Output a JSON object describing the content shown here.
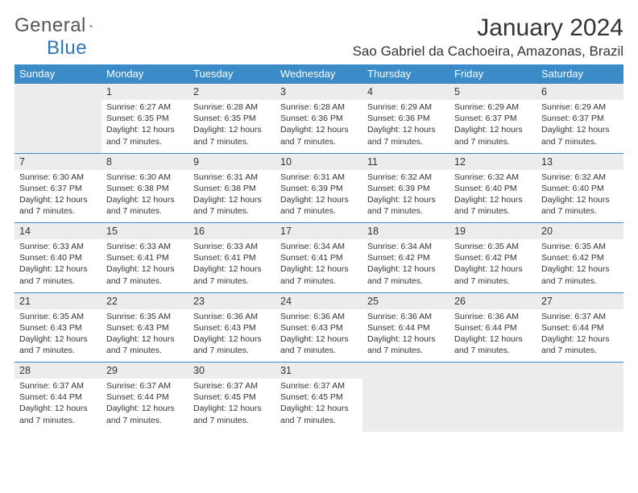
{
  "logo": {
    "word1": "General",
    "word2": "Blue"
  },
  "title": "January 2024",
  "subtitle": "Sao Gabriel da Cachoeira, Amazonas, Brazil",
  "weekdays": [
    "Sunday",
    "Monday",
    "Tuesday",
    "Wednesday",
    "Thursday",
    "Friday",
    "Saturday"
  ],
  "colors": {
    "header_bg": "#3b8bc9",
    "header_text": "#ffffff",
    "daynum_bg": "#ececec",
    "row_divider": "#3b8bc9",
    "text": "#333333",
    "logo_grey": "#555555",
    "logo_blue": "#2d77b8"
  },
  "weeks": [
    {
      "nums": [
        "",
        "1",
        "2",
        "3",
        "4",
        "5",
        "6"
      ],
      "cells": [
        null,
        {
          "sunrise": "Sunrise: 6:27 AM",
          "sunset": "Sunset: 6:35 PM",
          "day1": "Daylight: 12 hours",
          "day2": "and 7 minutes."
        },
        {
          "sunrise": "Sunrise: 6:28 AM",
          "sunset": "Sunset: 6:35 PM",
          "day1": "Daylight: 12 hours",
          "day2": "and 7 minutes."
        },
        {
          "sunrise": "Sunrise: 6:28 AM",
          "sunset": "Sunset: 6:36 PM",
          "day1": "Daylight: 12 hours",
          "day2": "and 7 minutes."
        },
        {
          "sunrise": "Sunrise: 6:29 AM",
          "sunset": "Sunset: 6:36 PM",
          "day1": "Daylight: 12 hours",
          "day2": "and 7 minutes."
        },
        {
          "sunrise": "Sunrise: 6:29 AM",
          "sunset": "Sunset: 6:37 PM",
          "day1": "Daylight: 12 hours",
          "day2": "and 7 minutes."
        },
        {
          "sunrise": "Sunrise: 6:29 AM",
          "sunset": "Sunset: 6:37 PM",
          "day1": "Daylight: 12 hours",
          "day2": "and 7 minutes."
        }
      ]
    },
    {
      "nums": [
        "7",
        "8",
        "9",
        "10",
        "11",
        "12",
        "13"
      ],
      "cells": [
        {
          "sunrise": "Sunrise: 6:30 AM",
          "sunset": "Sunset: 6:37 PM",
          "day1": "Daylight: 12 hours",
          "day2": "and 7 minutes."
        },
        {
          "sunrise": "Sunrise: 6:30 AM",
          "sunset": "Sunset: 6:38 PM",
          "day1": "Daylight: 12 hours",
          "day2": "and 7 minutes."
        },
        {
          "sunrise": "Sunrise: 6:31 AM",
          "sunset": "Sunset: 6:38 PM",
          "day1": "Daylight: 12 hours",
          "day2": "and 7 minutes."
        },
        {
          "sunrise": "Sunrise: 6:31 AM",
          "sunset": "Sunset: 6:39 PM",
          "day1": "Daylight: 12 hours",
          "day2": "and 7 minutes."
        },
        {
          "sunrise": "Sunrise: 6:32 AM",
          "sunset": "Sunset: 6:39 PM",
          "day1": "Daylight: 12 hours",
          "day2": "and 7 minutes."
        },
        {
          "sunrise": "Sunrise: 6:32 AM",
          "sunset": "Sunset: 6:40 PM",
          "day1": "Daylight: 12 hours",
          "day2": "and 7 minutes."
        },
        {
          "sunrise": "Sunrise: 6:32 AM",
          "sunset": "Sunset: 6:40 PM",
          "day1": "Daylight: 12 hours",
          "day2": "and 7 minutes."
        }
      ]
    },
    {
      "nums": [
        "14",
        "15",
        "16",
        "17",
        "18",
        "19",
        "20"
      ],
      "cells": [
        {
          "sunrise": "Sunrise: 6:33 AM",
          "sunset": "Sunset: 6:40 PM",
          "day1": "Daylight: 12 hours",
          "day2": "and 7 minutes."
        },
        {
          "sunrise": "Sunrise: 6:33 AM",
          "sunset": "Sunset: 6:41 PM",
          "day1": "Daylight: 12 hours",
          "day2": "and 7 minutes."
        },
        {
          "sunrise": "Sunrise: 6:33 AM",
          "sunset": "Sunset: 6:41 PM",
          "day1": "Daylight: 12 hours",
          "day2": "and 7 minutes."
        },
        {
          "sunrise": "Sunrise: 6:34 AM",
          "sunset": "Sunset: 6:41 PM",
          "day1": "Daylight: 12 hours",
          "day2": "and 7 minutes."
        },
        {
          "sunrise": "Sunrise: 6:34 AM",
          "sunset": "Sunset: 6:42 PM",
          "day1": "Daylight: 12 hours",
          "day2": "and 7 minutes."
        },
        {
          "sunrise": "Sunrise: 6:35 AM",
          "sunset": "Sunset: 6:42 PM",
          "day1": "Daylight: 12 hours",
          "day2": "and 7 minutes."
        },
        {
          "sunrise": "Sunrise: 6:35 AM",
          "sunset": "Sunset: 6:42 PM",
          "day1": "Daylight: 12 hours",
          "day2": "and 7 minutes."
        }
      ]
    },
    {
      "nums": [
        "21",
        "22",
        "23",
        "24",
        "25",
        "26",
        "27"
      ],
      "cells": [
        {
          "sunrise": "Sunrise: 6:35 AM",
          "sunset": "Sunset: 6:43 PM",
          "day1": "Daylight: 12 hours",
          "day2": "and 7 minutes."
        },
        {
          "sunrise": "Sunrise: 6:35 AM",
          "sunset": "Sunset: 6:43 PM",
          "day1": "Daylight: 12 hours",
          "day2": "and 7 minutes."
        },
        {
          "sunrise": "Sunrise: 6:36 AM",
          "sunset": "Sunset: 6:43 PM",
          "day1": "Daylight: 12 hours",
          "day2": "and 7 minutes."
        },
        {
          "sunrise": "Sunrise: 6:36 AM",
          "sunset": "Sunset: 6:43 PM",
          "day1": "Daylight: 12 hours",
          "day2": "and 7 minutes."
        },
        {
          "sunrise": "Sunrise: 6:36 AM",
          "sunset": "Sunset: 6:44 PM",
          "day1": "Daylight: 12 hours",
          "day2": "and 7 minutes."
        },
        {
          "sunrise": "Sunrise: 6:36 AM",
          "sunset": "Sunset: 6:44 PM",
          "day1": "Daylight: 12 hours",
          "day2": "and 7 minutes."
        },
        {
          "sunrise": "Sunrise: 6:37 AM",
          "sunset": "Sunset: 6:44 PM",
          "day1": "Daylight: 12 hours",
          "day2": "and 7 minutes."
        }
      ]
    },
    {
      "nums": [
        "28",
        "29",
        "30",
        "31",
        "",
        "",
        ""
      ],
      "cells": [
        {
          "sunrise": "Sunrise: 6:37 AM",
          "sunset": "Sunset: 6:44 PM",
          "day1": "Daylight: 12 hours",
          "day2": "and 7 minutes."
        },
        {
          "sunrise": "Sunrise: 6:37 AM",
          "sunset": "Sunset: 6:44 PM",
          "day1": "Daylight: 12 hours",
          "day2": "and 7 minutes."
        },
        {
          "sunrise": "Sunrise: 6:37 AM",
          "sunset": "Sunset: 6:45 PM",
          "day1": "Daylight: 12 hours",
          "day2": "and 7 minutes."
        },
        {
          "sunrise": "Sunrise: 6:37 AM",
          "sunset": "Sunset: 6:45 PM",
          "day1": "Daylight: 12 hours",
          "day2": "and 7 minutes."
        },
        null,
        null,
        null
      ]
    }
  ]
}
